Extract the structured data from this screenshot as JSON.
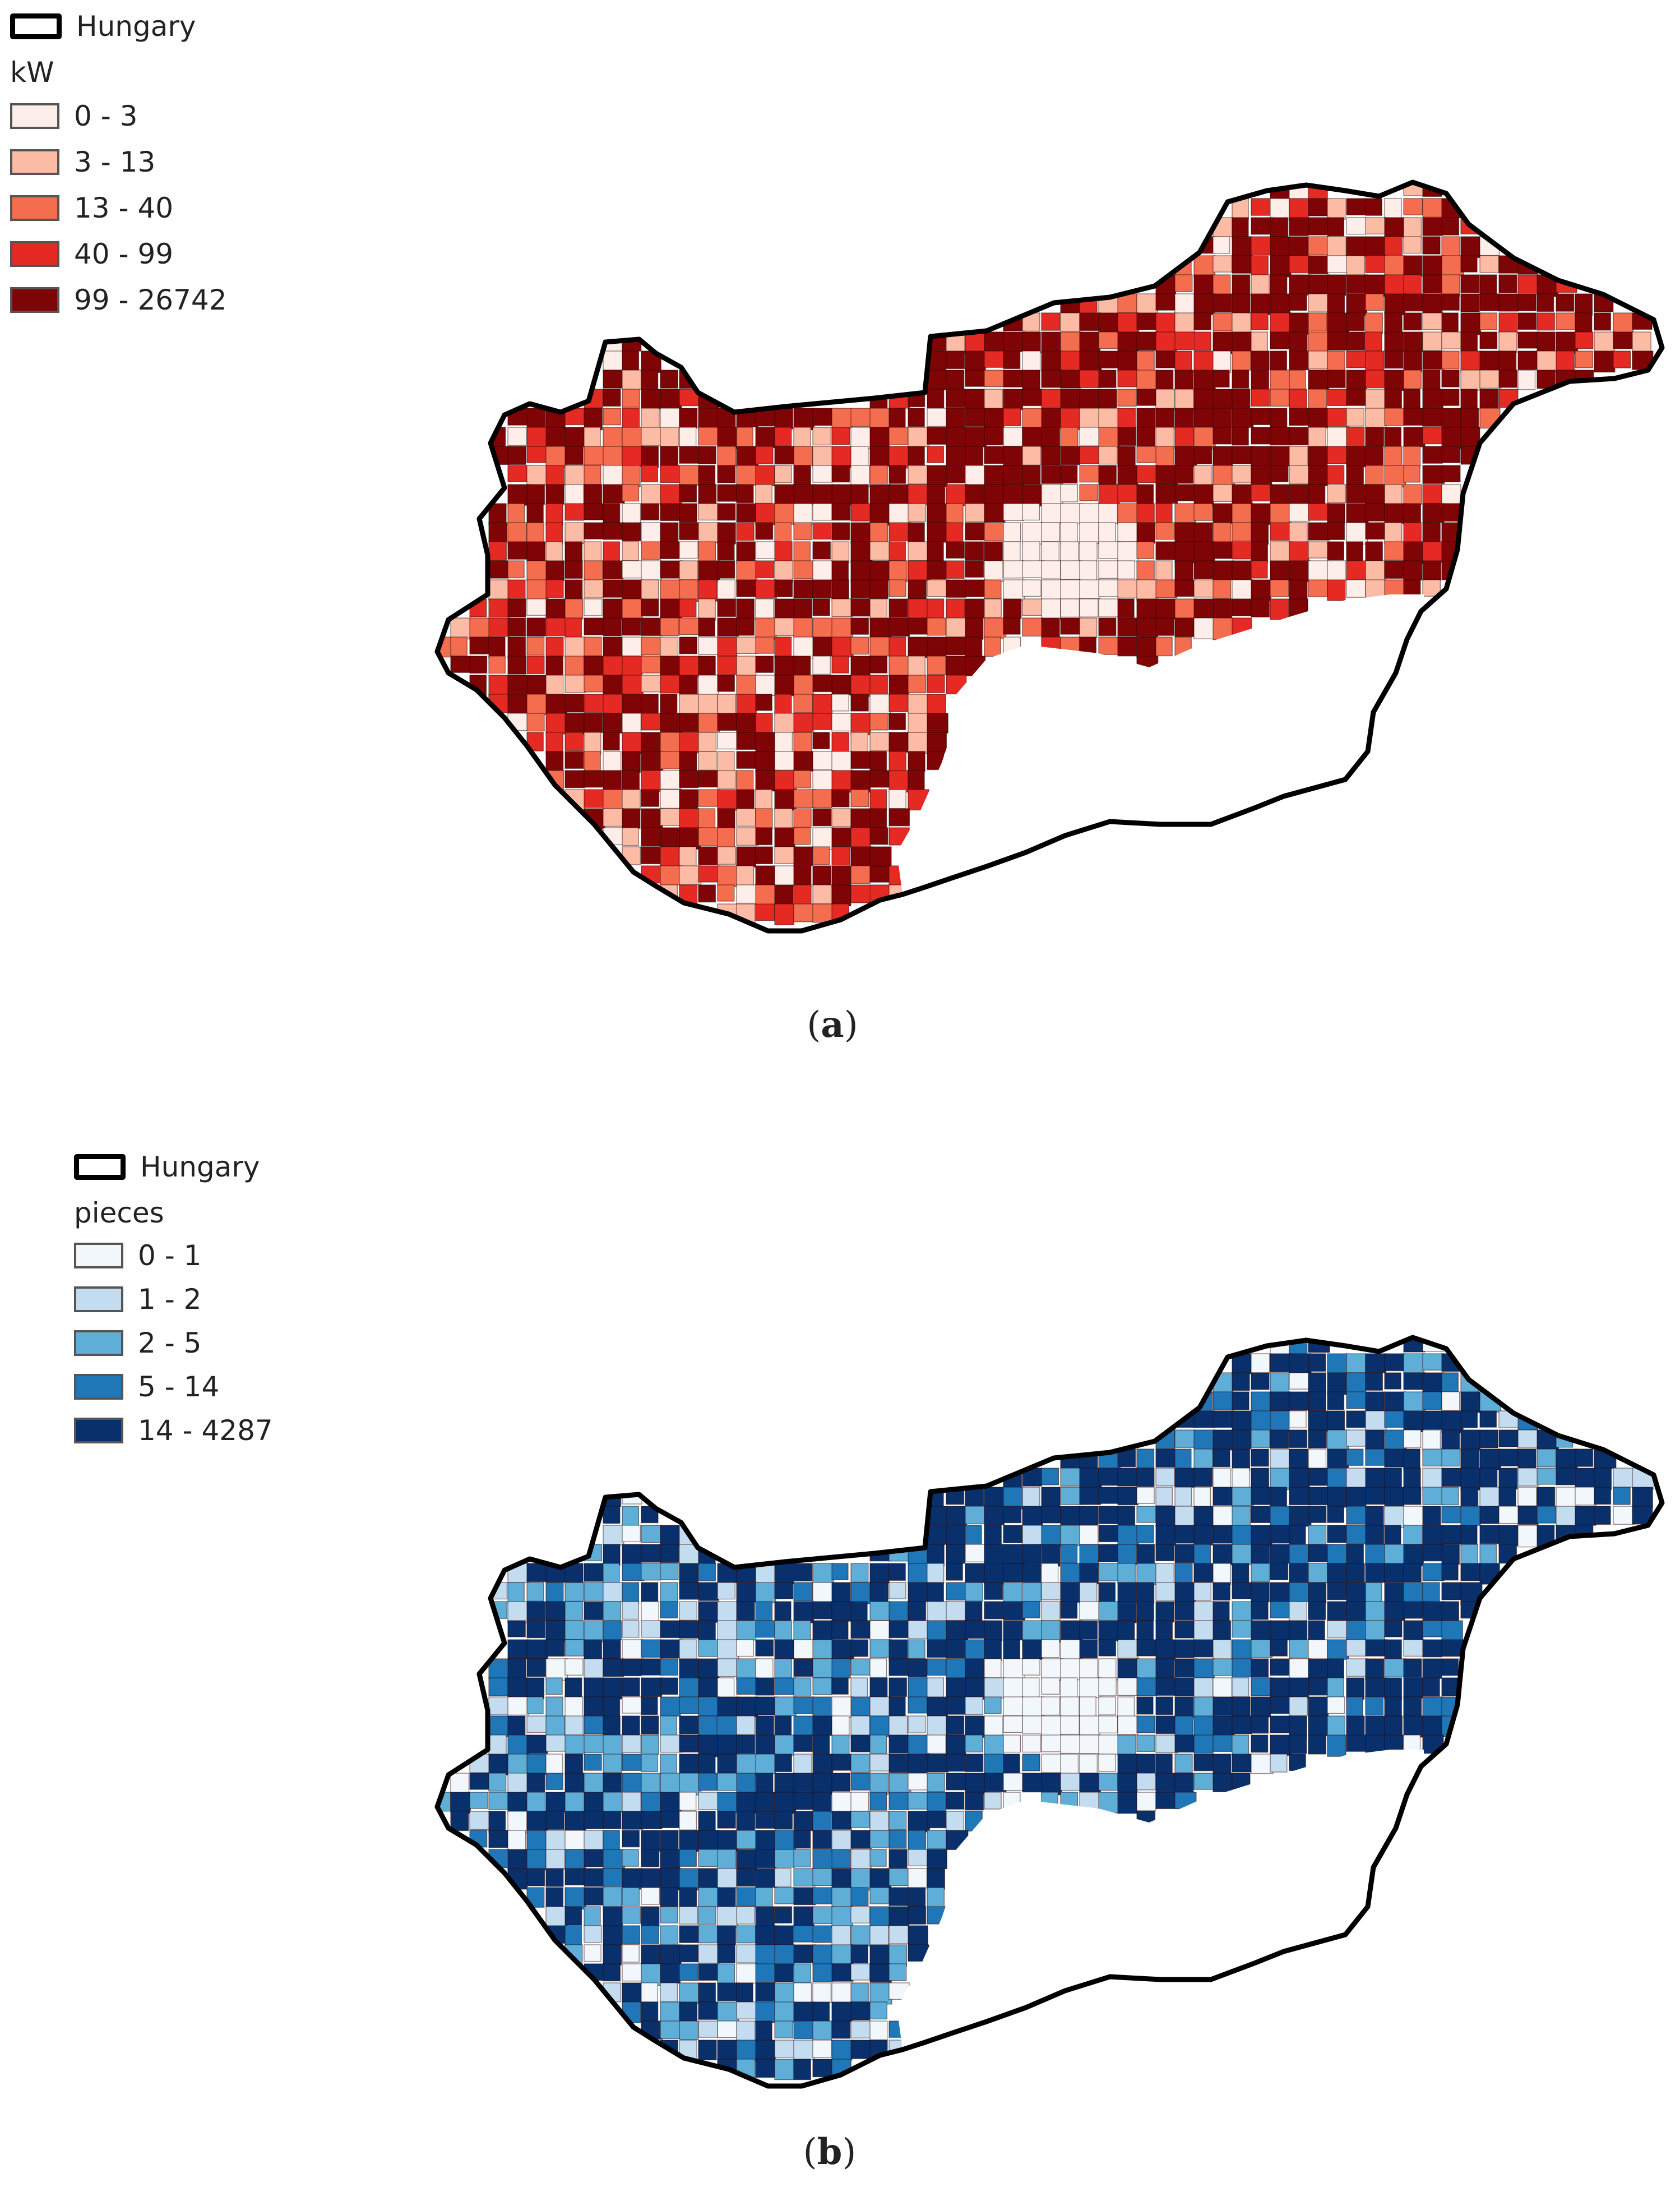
{
  "panel_a": {
    "outline_label": "Hungary",
    "unit": "kW",
    "classes": [
      {
        "label": "0 - 3",
        "color": "#fdeeea"
      },
      {
        "label": "3 - 13",
        "color": "#fbbba4"
      },
      {
        "label": "13 - 40",
        "color": "#f46d4f"
      },
      {
        "label": "40 - 99",
        "color": "#e52a24"
      },
      {
        "label": "99 - 26742",
        "color": "#7f0405"
      }
    ],
    "caption_open": "(",
    "caption_letter": "a",
    "caption_close": ")"
  },
  "panel_b": {
    "outline_label": "Hungary",
    "unit": "pieces",
    "classes": [
      {
        "label": "0 - 1",
        "color": "#f2f7fc"
      },
      {
        "label": "1 - 2",
        "color": "#c4dcf0"
      },
      {
        "label": "2 - 5",
        "color": "#5eaed8"
      },
      {
        "label": "5 - 14",
        "color": "#1f77b8"
      },
      {
        "label": "14 - 4287",
        "color": "#09306b"
      }
    ],
    "caption_open": "(",
    "caption_letter": "b",
    "caption_close": ")"
  }
}
